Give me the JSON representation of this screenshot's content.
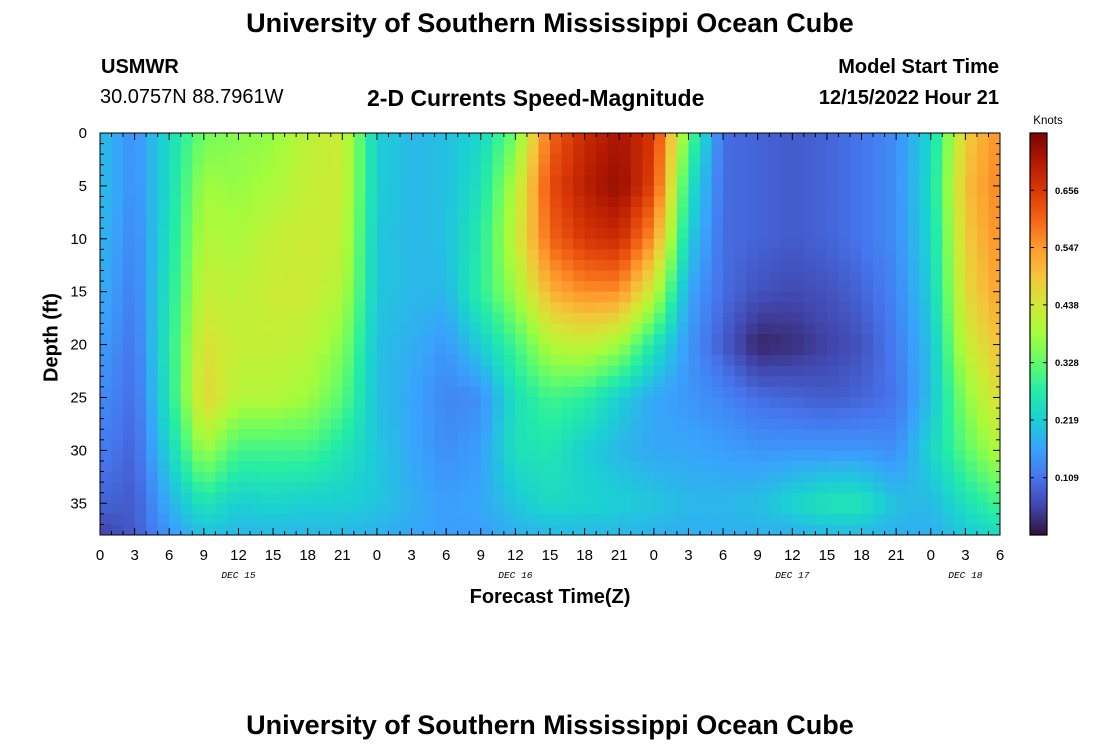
{
  "header": {
    "title": "University of Southern Mississippi Ocean Cube",
    "station": "USMWR",
    "coords": "30.0757N  88.7961W",
    "subtitle": "2-D Currents Speed-Magnitude",
    "model_label": "Model Start Time",
    "model_time": "12/15/2022 Hour 21"
  },
  "footer": {
    "title": "University of Southern Mississippi Ocean Cube"
  },
  "colorbar": {
    "unit": "Knots",
    "ticks": [
      "0.656",
      "0.547",
      "0.438",
      "0.328",
      "0.219",
      "0.109"
    ],
    "tick_values": [
      0.656,
      0.547,
      0.438,
      0.328,
      0.219,
      0.109
    ],
    "range": [
      0.0,
      0.765
    ],
    "colors": [
      "#30123b",
      "#4145ab",
      "#4675ed",
      "#39a2fc",
      "#1bcfd4",
      "#24eca6",
      "#61fc6c",
      "#a4fc3b",
      "#d1e834",
      "#f3c63a",
      "#fe9b2d",
      "#f36315",
      "#d93806",
      "#b11901",
      "#7a0402"
    ]
  },
  "chart_data": {
    "type": "heatmap",
    "title": "2-D Currents Speed-Magnitude",
    "xlabel": "Forecast Time(Z)",
    "ylabel": "Depth (ft)",
    "x_tick_labels": [
      "0",
      "3",
      "6",
      "9",
      "12",
      "15",
      "18",
      "21",
      "0",
      "3",
      "6",
      "9",
      "12",
      "15",
      "18",
      "21",
      "0",
      "3",
      "6",
      "9",
      "12",
      "15",
      "18",
      "21",
      "0",
      "3",
      "6"
    ],
    "x_range_hours": [
      0,
      78
    ],
    "day_labels": [
      {
        "label": "DEC 15",
        "hour": 12
      },
      {
        "label": "DEC 16",
        "hour": 36
      },
      {
        "label": "DEC 17",
        "hour": 60
      },
      {
        "label": "DEC 18",
        "hour": 75
      }
    ],
    "y_tick_labels": [
      "0",
      "5",
      "10",
      "15",
      "20",
      "25",
      "30",
      "35"
    ],
    "y_tick_values": [
      0,
      5,
      10,
      15,
      20,
      25,
      30,
      35
    ],
    "ylim": [
      0,
      38
    ],
    "y_inverted": true,
    "z_unit": "Knots",
    "z_range": [
      0.0,
      0.765
    ],
    "depths_ft": [
      0,
      5,
      10,
      15,
      20,
      25,
      30,
      35,
      38
    ],
    "hours": [
      0,
      3,
      6,
      9,
      12,
      15,
      18,
      21,
      24,
      27,
      30,
      33,
      36,
      39,
      42,
      45,
      48,
      51,
      54,
      57,
      60,
      63,
      66,
      69,
      72,
      75,
      78
    ],
    "values": [
      [
        0.2,
        0.14,
        0.24,
        0.34,
        0.36,
        0.37,
        0.41,
        0.43,
        0.22,
        0.19,
        0.2,
        0.23,
        0.34,
        0.6,
        0.68,
        0.72,
        0.66,
        0.33,
        0.1,
        0.09,
        0.08,
        0.09,
        0.11,
        0.14,
        0.23,
        0.48,
        0.56
      ],
      [
        0.2,
        0.14,
        0.24,
        0.38,
        0.37,
        0.39,
        0.42,
        0.43,
        0.22,
        0.19,
        0.2,
        0.25,
        0.4,
        0.63,
        0.7,
        0.74,
        0.64,
        0.26,
        0.1,
        0.09,
        0.08,
        0.09,
        0.11,
        0.14,
        0.24,
        0.5,
        0.57
      ],
      [
        0.19,
        0.13,
        0.25,
        0.4,
        0.39,
        0.42,
        0.43,
        0.42,
        0.21,
        0.19,
        0.2,
        0.27,
        0.42,
        0.6,
        0.66,
        0.68,
        0.55,
        0.22,
        0.1,
        0.09,
        0.08,
        0.09,
        0.11,
        0.14,
        0.23,
        0.48,
        0.56
      ],
      [
        0.18,
        0.12,
        0.26,
        0.42,
        0.41,
        0.43,
        0.43,
        0.4,
        0.21,
        0.19,
        0.19,
        0.28,
        0.38,
        0.52,
        0.56,
        0.56,
        0.42,
        0.17,
        0.1,
        0.07,
        0.06,
        0.07,
        0.09,
        0.13,
        0.22,
        0.46,
        0.54
      ],
      [
        0.16,
        0.11,
        0.27,
        0.45,
        0.42,
        0.42,
        0.41,
        0.36,
        0.2,
        0.18,
        0.15,
        0.22,
        0.3,
        0.4,
        0.42,
        0.38,
        0.26,
        0.15,
        0.08,
        0.02,
        0.03,
        0.05,
        0.07,
        0.12,
        0.2,
        0.42,
        0.5
      ],
      [
        0.14,
        0.1,
        0.26,
        0.47,
        0.4,
        0.4,
        0.38,
        0.32,
        0.2,
        0.17,
        0.13,
        0.14,
        0.25,
        0.3,
        0.28,
        0.22,
        0.17,
        0.15,
        0.13,
        0.1,
        0.09,
        0.08,
        0.09,
        0.11,
        0.2,
        0.36,
        0.46
      ],
      [
        0.12,
        0.09,
        0.23,
        0.38,
        0.3,
        0.3,
        0.3,
        0.26,
        0.21,
        0.17,
        0.14,
        0.16,
        0.25,
        0.26,
        0.22,
        0.19,
        0.17,
        0.17,
        0.16,
        0.15,
        0.15,
        0.15,
        0.15,
        0.14,
        0.23,
        0.32,
        0.4
      ],
      [
        0.09,
        0.08,
        0.18,
        0.26,
        0.22,
        0.23,
        0.22,
        0.22,
        0.21,
        0.18,
        0.16,
        0.17,
        0.21,
        0.24,
        0.23,
        0.22,
        0.21,
        0.19,
        0.19,
        0.2,
        0.23,
        0.26,
        0.26,
        0.2,
        0.19,
        0.25,
        0.3
      ],
      [
        0.05,
        0.08,
        0.15,
        0.2,
        0.19,
        0.19,
        0.19,
        0.19,
        0.18,
        0.17,
        0.16,
        0.16,
        0.18,
        0.19,
        0.19,
        0.19,
        0.18,
        0.18,
        0.18,
        0.18,
        0.18,
        0.19,
        0.19,
        0.18,
        0.18,
        0.21,
        0.24
      ]
    ]
  }
}
